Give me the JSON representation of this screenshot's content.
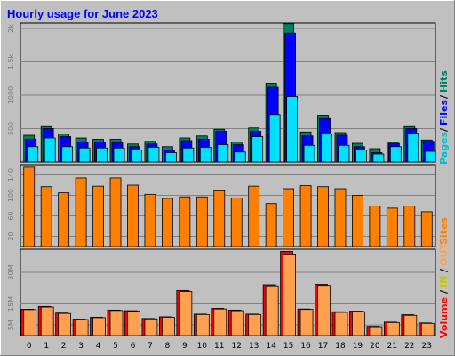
{
  "title": "Hourly usage for June 2023",
  "colors": {
    "background": "#c0c0c0",
    "title": "#0000ff",
    "hits": "#00805c",
    "files": "#0000ff",
    "pages": "#00e0ff",
    "sites": "#ff8000",
    "kbytes": "#ff0000",
    "in": "#c8c800",
    "out": "#ffa050"
  },
  "labels": {
    "top_right": "Pages / Files / Hits",
    "mid_right": "Sites",
    "bot_right": "Volume / IN / OUT"
  },
  "chart_data": [
    {
      "type": "bar",
      "title": "Hourly usage for June 2023",
      "categories": [
        "0",
        "1",
        "2",
        "3",
        "4",
        "5",
        "6",
        "7",
        "8",
        "9",
        "10",
        "11",
        "12",
        "13",
        "14",
        "15",
        "16",
        "17",
        "18",
        "19",
        "20",
        "21",
        "22",
        "23"
      ],
      "y_ticks": [
        "500",
        "1000",
        "1.5k",
        "2k"
      ],
      "ylim": [
        0,
        2080
      ],
      "series": [
        {
          "name": "Hits",
          "values": [
            400,
            530,
            420,
            360,
            340,
            340,
            270,
            310,
            230,
            360,
            390,
            490,
            300,
            510,
            1180,
            2070,
            450,
            700,
            440,
            280,
            200,
            300,
            530,
            330
          ]
        },
        {
          "name": "Files",
          "values": [
            340,
            500,
            380,
            300,
            300,
            290,
            230,
            270,
            180,
            320,
            340,
            460,
            260,
            460,
            1120,
            1930,
            390,
            650,
            400,
            230,
            140,
            280,
            500,
            310
          ]
        },
        {
          "name": "Pages",
          "values": [
            230,
            360,
            230,
            210,
            210,
            210,
            180,
            220,
            140,
            210,
            220,
            260,
            150,
            380,
            710,
            980,
            250,
            420,
            250,
            180,
            120,
            230,
            430,
            160
          ]
        }
      ]
    },
    {
      "type": "bar",
      "categories": [
        "0",
        "1",
        "2",
        "3",
        "4",
        "5",
        "6",
        "7",
        "8",
        "9",
        "10",
        "11",
        "12",
        "13",
        "14",
        "15",
        "16",
        "17",
        "18",
        "19",
        "20",
        "21",
        "22",
        "23"
      ],
      "y_ticks": [
        "20",
        "60",
        "100",
        "140"
      ],
      "ylim": [
        0,
        160
      ],
      "series": [
        {
          "name": "Sites",
          "values": [
            155,
            117,
            105,
            134,
            118,
            134,
            120,
            102,
            94,
            97,
            97,
            109,
            95,
            118,
            84,
            113,
            119,
            117,
            113,
            100,
            79,
            75,
            79,
            68
          ]
        }
      ]
    },
    {
      "type": "bar",
      "categories": [
        "0",
        "1",
        "2",
        "3",
        "4",
        "5",
        "6",
        "7",
        "8",
        "9",
        "10",
        "11",
        "12",
        "13",
        "14",
        "15",
        "16",
        "17",
        "18",
        "19",
        "20",
        "21",
        "22",
        "23"
      ],
      "y_ticks": [
        "5M",
        "15M",
        "30M"
      ],
      "ylim": [
        0,
        41
      ],
      "series": [
        {
          "name": "Volume",
          "values": [
            12.5,
            13.8,
            10.7,
            7.8,
            8.7,
            12.1,
            11.8,
            8.1,
            8.9,
            21.4,
            10.2,
            12.9,
            12.1,
            10.2,
            24.1,
            40,
            12.6,
            24.3,
            11.3,
            11.6,
            4.4,
            6.4,
            9.9,
            6
          ]
        },
        {
          "name": "OUT",
          "values": [
            12.3,
            13.5,
            10.5,
            7.6,
            8.5,
            11.9,
            11.6,
            7.9,
            8.7,
            20.9,
            10,
            12.6,
            11.8,
            10,
            23.6,
            38.7,
            12.4,
            23.8,
            11,
            11.4,
            4.2,
            6.2,
            9.6,
            5.8
          ]
        }
      ]
    }
  ]
}
